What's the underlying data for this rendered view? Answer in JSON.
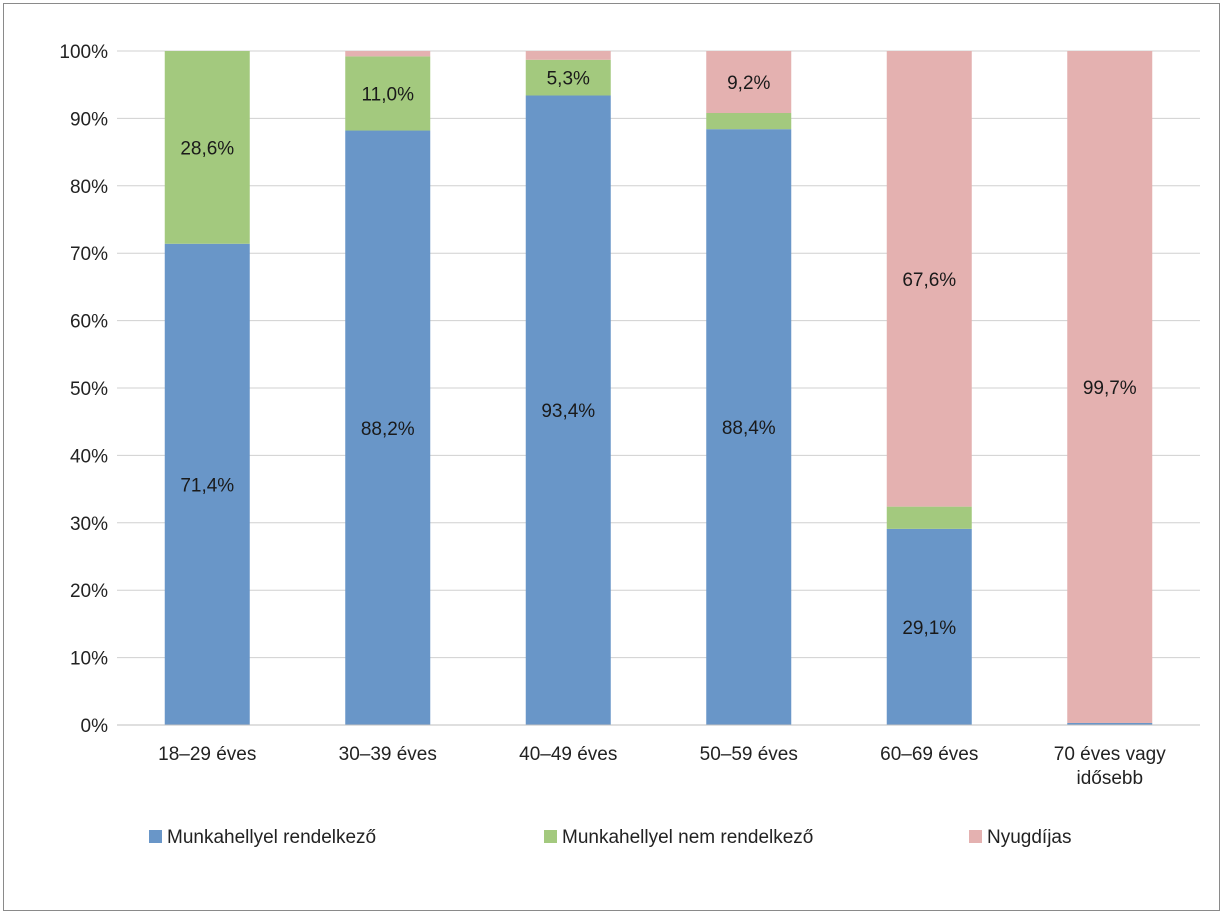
{
  "chart_data": {
    "type": "bar",
    "stacked": true,
    "title": "",
    "xlabel": "",
    "ylabel": "",
    "ylim": [
      0,
      100
    ],
    "yticks": [
      "0%",
      "10%",
      "20%",
      "30%",
      "40%",
      "50%",
      "60%",
      "70%",
      "80%",
      "90%",
      "100%"
    ],
    "grid": true,
    "legend_position": "bottom",
    "categories": [
      [
        "18–29 éves"
      ],
      [
        "30–39 éves"
      ],
      [
        "40–49 éves"
      ],
      [
        "50–59 éves"
      ],
      [
        "60–69 éves"
      ],
      [
        "70 éves vagy",
        "idősebb"
      ]
    ],
    "series": [
      {
        "name": "Munkahellyel rendelkező",
        "color": "#6996c8",
        "values": [
          71.4,
          88.2,
          93.4,
          88.4,
          29.1,
          0.3
        ],
        "labels": [
          "71,4%",
          "88,2%",
          "93,4%",
          "88,4%",
          "29,1%",
          ""
        ]
      },
      {
        "name": "Munkahellyel nem rendelkező",
        "color": "#a3c97e",
        "values": [
          28.6,
          11.0,
          5.3,
          2.4,
          3.3,
          0.0
        ],
        "labels": [
          "28,6%",
          "11,0%",
          "5,3%",
          "",
          "",
          ""
        ]
      },
      {
        "name": "Nyugdíjas",
        "color": "#e4b1b0",
        "values": [
          0.0,
          0.8,
          1.3,
          9.2,
          67.6,
          99.7
        ],
        "labels": [
          "",
          "",
          "",
          "9,2%",
          "67,6%",
          "99,7%"
        ]
      }
    ]
  }
}
